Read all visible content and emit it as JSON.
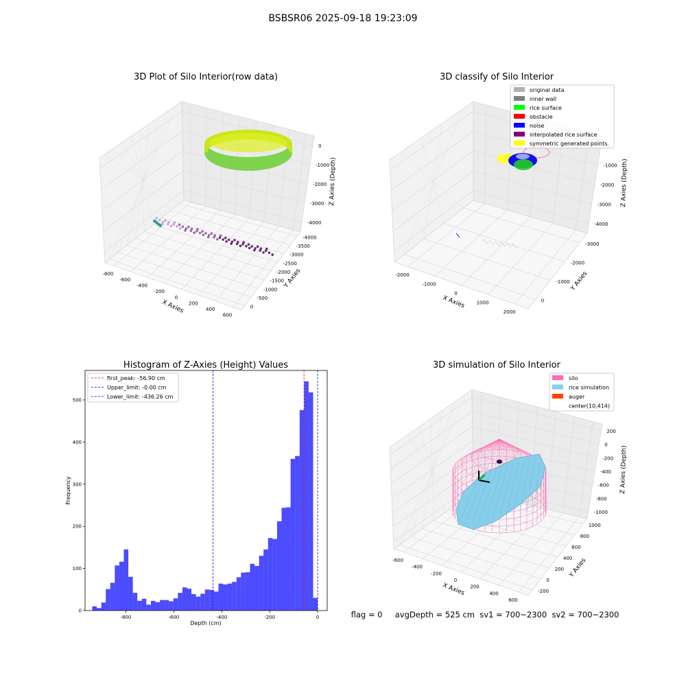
{
  "suptitle": "BSBSR06 2025-09-18 19:23:09",
  "panels": {
    "raw": {
      "title": "3D Plot of Silo Interior(row data)",
      "xlabel": "X Axies",
      "ylabel": "Y Axies",
      "zlabel": "Z Axies (Depth)",
      "xticks": [
        "-800",
        "-600",
        "-400",
        "-200",
        "0",
        "200",
        "400",
        "600"
      ],
      "yticks": [
        "0",
        "-500",
        "-1000",
        "-1500",
        "-2000",
        "-2500",
        "-3000",
        "-3500",
        "-4000"
      ],
      "zticks": [
        "0",
        "-1000",
        "-2000",
        "-3000",
        "-4000"
      ]
    },
    "classify": {
      "title": "3D classify of Silo Interior",
      "xlabel": "X Axies",
      "ylabel": "Y Axies",
      "zlabel": "Z Axies (Depth)",
      "xticks": [
        "-2000",
        "-1000",
        "0",
        "1000",
        "2000"
      ],
      "yticks": [
        "0",
        "-1000",
        "-2000",
        "-3000"
      ],
      "zticks": [
        "0",
        "-1000",
        "-2000",
        "-3000",
        "-4000"
      ],
      "legend": [
        {
          "label": "original data",
          "color": "#b0b0b0"
        },
        {
          "label": "inner wall",
          "color": "#808080"
        },
        {
          "label": "rice surface",
          "color": "#00ff00"
        },
        {
          "label": "obstacle",
          "color": "#ff0000"
        },
        {
          "label": "noise",
          "color": "#0000ff"
        },
        {
          "label": "interpolated rice surface",
          "color": "#800080"
        },
        {
          "label": "symmetric generated points",
          "color": "#ffff00"
        }
      ]
    },
    "simulation": {
      "title": "3D simulation of Silo Interior",
      "xlabel": "X Axies",
      "ylabel": "Y Axies",
      "zlabel": "Z Axies (Depth)",
      "xticks": [
        "-600",
        "-400",
        "-200",
        "0",
        "200",
        "400",
        "600"
      ],
      "yticks": [
        "-200",
        "0",
        "200",
        "400",
        "600",
        "800",
        "1000"
      ],
      "zticks": [
        "200",
        "0",
        "-200",
        "-400",
        "-600",
        "-800",
        "-1000"
      ],
      "legend": [
        {
          "label": "silo",
          "color": "#ff69b4"
        },
        {
          "label": "rice simulation",
          "color": "#87ceeb"
        },
        {
          "label": "auger",
          "color": "#ff4500"
        },
        {
          "label": "center(10,414)",
          "color": "none"
        }
      ]
    }
  },
  "status_line": "flag = 0     avgDepth = 525 cm  sv1 = 700~2300  sv2 = 700~2300",
  "chart_data": {
    "type": "bar",
    "title": "Histogram of Z-Axies (Height) Values",
    "xlabel": "Depth (cm)",
    "ylabel": "Frequency",
    "xlim": [
      -970,
      40
    ],
    "ylim": [
      0,
      570
    ],
    "xticks": [
      -800,
      -600,
      -400,
      -200,
      0
    ],
    "yticks": [
      0,
      100,
      200,
      300,
      400,
      500
    ],
    "bar_color": "#0000ff",
    "bin_start": -940,
    "bin_width": 18.8,
    "values": [
      10,
      6,
      19,
      51,
      66,
      107,
      116,
      145,
      80,
      42,
      23,
      28,
      14,
      23,
      20,
      25,
      25,
      22,
      29,
      42,
      55,
      52,
      39,
      33,
      40,
      50,
      49,
      45,
      64,
      62,
      64,
      68,
      79,
      90,
      91,
      111,
      106,
      130,
      145,
      172,
      170,
      212,
      244,
      245,
      360,
      367,
      476,
      544,
      518,
      30
    ],
    "vlines": [
      {
        "label": "first_peak: -56.90 cm",
        "x": -56.9,
        "color": "#ff0000"
      },
      {
        "label": "Upper_limit: -0.00 cm",
        "x": 0.0,
        "color": "#0000ff"
      },
      {
        "label": "Lower_limit: -436.26 cm",
        "x": -436.26,
        "color": "#0000ff"
      }
    ],
    "legend_position": "upper left"
  }
}
